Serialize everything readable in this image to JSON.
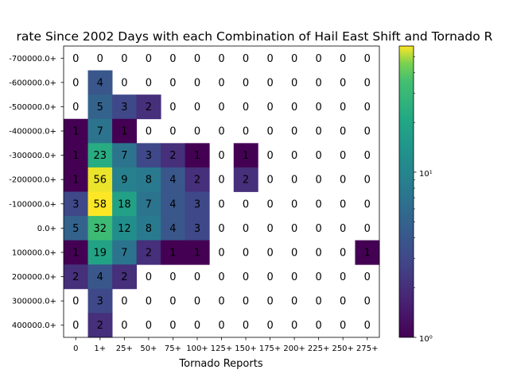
{
  "chart_data": {
    "type": "heatmap",
    "title": "rate Since 2002 Days with each Combination of Hail East Shift and Tornado R",
    "xlabel": "Tornado Reports",
    "ylabel": "",
    "x_categories": [
      "0",
      "1+",
      "25+",
      "50+",
      "75+",
      "100+",
      "125+",
      "150+",
      "175+",
      "200+",
      "225+",
      "250+",
      "275+"
    ],
    "y_categories": [
      "-700000.0+",
      "-600000.0+",
      "-500000.0+",
      "-400000.0+",
      "-300000.0+",
      "-200000.0+",
      "-100000.0+",
      "0.0+",
      "100000.0+",
      "200000.0+",
      "300000.0+",
      "400000.0+"
    ],
    "values": [
      [
        0,
        0,
        0,
        0,
        0,
        0,
        0,
        0,
        0,
        0,
        0,
        0,
        0
      ],
      [
        0,
        4,
        0,
        0,
        0,
        0,
        0,
        0,
        0,
        0,
        0,
        0,
        0
      ],
      [
        0,
        5,
        3,
        2,
        0,
        0,
        0,
        0,
        0,
        0,
        0,
        0,
        0
      ],
      [
        1,
        7,
        1,
        0,
        0,
        0,
        0,
        0,
        0,
        0,
        0,
        0,
        0
      ],
      [
        1,
        23,
        7,
        3,
        2,
        1,
        0,
        1,
        0,
        0,
        0,
        0,
        0
      ],
      [
        1,
        56,
        9,
        8,
        4,
        2,
        0,
        2,
        0,
        0,
        0,
        0,
        0
      ],
      [
        3,
        58,
        18,
        7,
        4,
        3,
        0,
        0,
        0,
        0,
        0,
        0,
        0
      ],
      [
        5,
        32,
        12,
        8,
        4,
        3,
        0,
        0,
        0,
        0,
        0,
        0,
        0
      ],
      [
        1,
        19,
        7,
        2,
        1,
        1,
        0,
        0,
        0,
        0,
        0,
        0,
        1
      ],
      [
        2,
        4,
        2,
        0,
        0,
        0,
        0,
        0,
        0,
        0,
        0,
        0,
        0
      ],
      [
        0,
        3,
        0,
        0,
        0,
        0,
        0,
        0,
        0,
        0,
        0,
        0,
        0
      ],
      [
        0,
        2,
        0,
        0,
        0,
        0,
        0,
        0,
        0,
        0,
        0,
        0,
        0
      ]
    ],
    "colormap": "viridis",
    "color_scale": "log",
    "color_range": [
      1,
      58
    ],
    "colorbar_ticks": [
      {
        "value": 1,
        "label": "10⁰"
      },
      {
        "value": 10,
        "label": "10¹"
      }
    ],
    "zero_cells": "blank",
    "grid": false
  }
}
